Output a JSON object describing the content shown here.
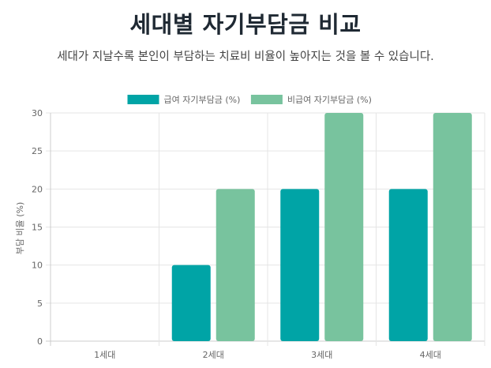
{
  "title": "세대별 자기부담금 비교",
  "subtitle": "세대가 지날수록 본인이 부담하는 치료비 비율이 높아지는 것을 볼 수 있습니다.",
  "colors": {
    "series1": "#00a4a6",
    "series2": "#78c39e"
  },
  "chart_data": {
    "type": "bar",
    "categories": [
      "1세대",
      "2세대",
      "3세대",
      "4세대"
    ],
    "series": [
      {
        "name": "급여 자기부담금 (%)",
        "values": [
          0,
          10,
          20,
          20
        ]
      },
      {
        "name": "비급여 자기부담금 (%)",
        "values": [
          0,
          20,
          30,
          30
        ]
      }
    ],
    "ylabel": "부담 비율 (%)",
    "ylim": [
      0,
      30
    ],
    "yticks": [
      0,
      5,
      10,
      15,
      20,
      25,
      30
    ],
    "grid": true,
    "legend": "top-center"
  }
}
